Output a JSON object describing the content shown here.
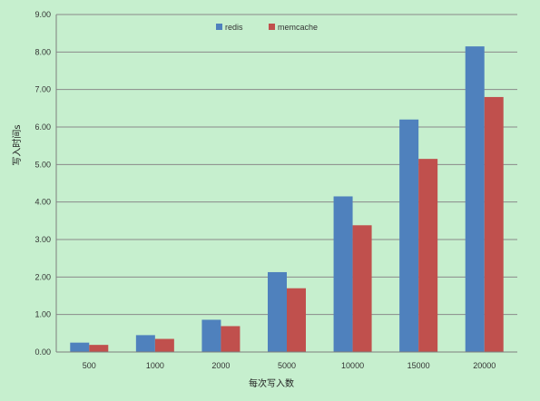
{
  "chart_data": {
    "type": "bar",
    "title": "",
    "xlabel": "每次写入数",
    "ylabel": "写入时间s",
    "categories": [
      "500",
      "1000",
      "2000",
      "5000",
      "10000",
      "15000",
      "20000"
    ],
    "series": [
      {
        "name": "redis",
        "color": "#4f81bd",
        "values": [
          0.25,
          0.45,
          0.86,
          2.13,
          4.15,
          6.2,
          8.15
        ]
      },
      {
        "name": "memcache",
        "color": "#c0504d",
        "values": [
          0.19,
          0.35,
          0.69,
          1.7,
          3.38,
          5.15,
          6.8
        ]
      }
    ],
    "ylim": [
      0,
      9
    ],
    "yticks": [
      "0.00",
      "1.00",
      "2.00",
      "3.00",
      "4.00",
      "5.00",
      "6.00",
      "7.00",
      "8.00",
      "9.00"
    ],
    "grid": true,
    "legend_position": "top",
    "background_color": "#c6efce"
  }
}
